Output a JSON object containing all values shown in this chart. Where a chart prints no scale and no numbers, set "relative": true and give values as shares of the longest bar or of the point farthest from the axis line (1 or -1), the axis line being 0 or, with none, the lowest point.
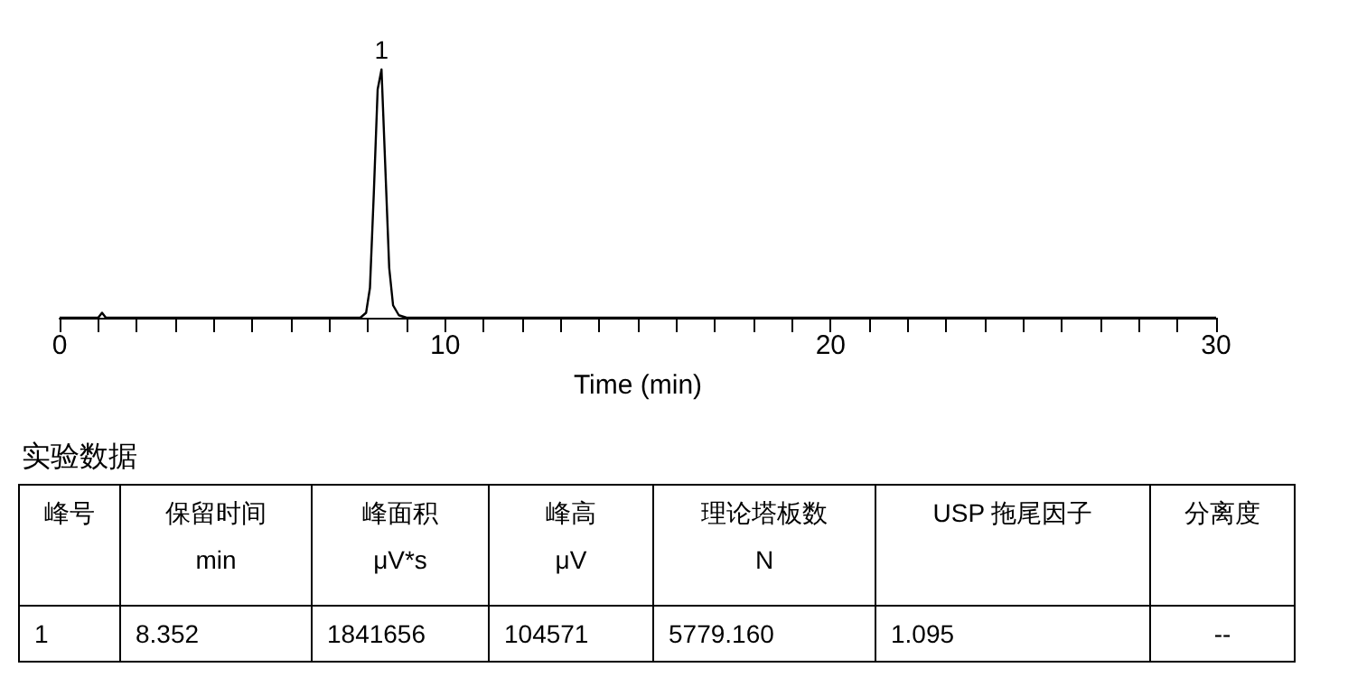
{
  "chart_data": {
    "type": "line",
    "relative": true,
    "xlabel": "Time (min)",
    "x": [
      0,
      1.0,
      1.1,
      1.2,
      7.8,
      7.95,
      8.05,
      8.15,
      8.25,
      8.35,
      8.45,
      8.55,
      8.65,
      8.8,
      9.0,
      30
    ],
    "series": [
      {
        "color": "#000000",
        "values": [
          0,
          0,
          0.02,
          0,
          0,
          0.02,
          0.12,
          0.5,
          0.92,
          1,
          0.6,
          0.2,
          0.05,
          0.01,
          0,
          0
        ]
      }
    ],
    "xlim": [
      0,
      30
    ],
    "xticks": [
      0,
      {
        "value": 1,
        "label": null
      },
      {
        "value": 2,
        "label": null
      },
      {
        "value": 3,
        "label": null
      },
      {
        "value": 4,
        "label": null
      },
      {
        "value": 5,
        "label": null
      },
      {
        "value": 6,
        "label": null
      },
      {
        "value": 7,
        "label": null
      },
      {
        "value": 8,
        "label": null
      },
      {
        "value": 9,
        "label": null
      },
      10,
      {
        "value": 11,
        "label": null
      },
      {
        "value": 12,
        "label": null
      },
      {
        "value": 13,
        "label": null
      },
      {
        "value": 14,
        "label": null
      },
      {
        "value": 15,
        "label": null
      },
      {
        "value": 16,
        "label": null
      },
      {
        "value": 17,
        "label": null
      },
      {
        "value": 18,
        "label": null
      },
      {
        "value": 19,
        "label": null
      },
      20,
      {
        "value": 21,
        "label": null
      },
      {
        "value": 22,
        "label": null
      },
      {
        "value": 23,
        "label": null
      },
      {
        "value": 24,
        "label": null
      },
      {
        "value": 25,
        "label": null
      },
      {
        "value": 26,
        "label": null
      },
      {
        "value": 27,
        "label": null
      },
      {
        "value": 28,
        "label": null
      },
      {
        "value": 29,
        "label": null
      },
      30
    ],
    "marker": "none",
    "line_style": "solid",
    "annotations": [
      {
        "text": "1",
        "x": 8.35,
        "y": 1
      },
      "实验数据",
      "峰号",
      "保留时间\nmin",
      "峰面积\nμV*s",
      "峰高\nμV",
      "理论塔板数\nN",
      "USP 拖尾因子",
      "分离度",
      "1",
      "8.352",
      "1841656",
      "104571",
      "5779.160",
      "1.095",
      "--"
    ]
  }
}
